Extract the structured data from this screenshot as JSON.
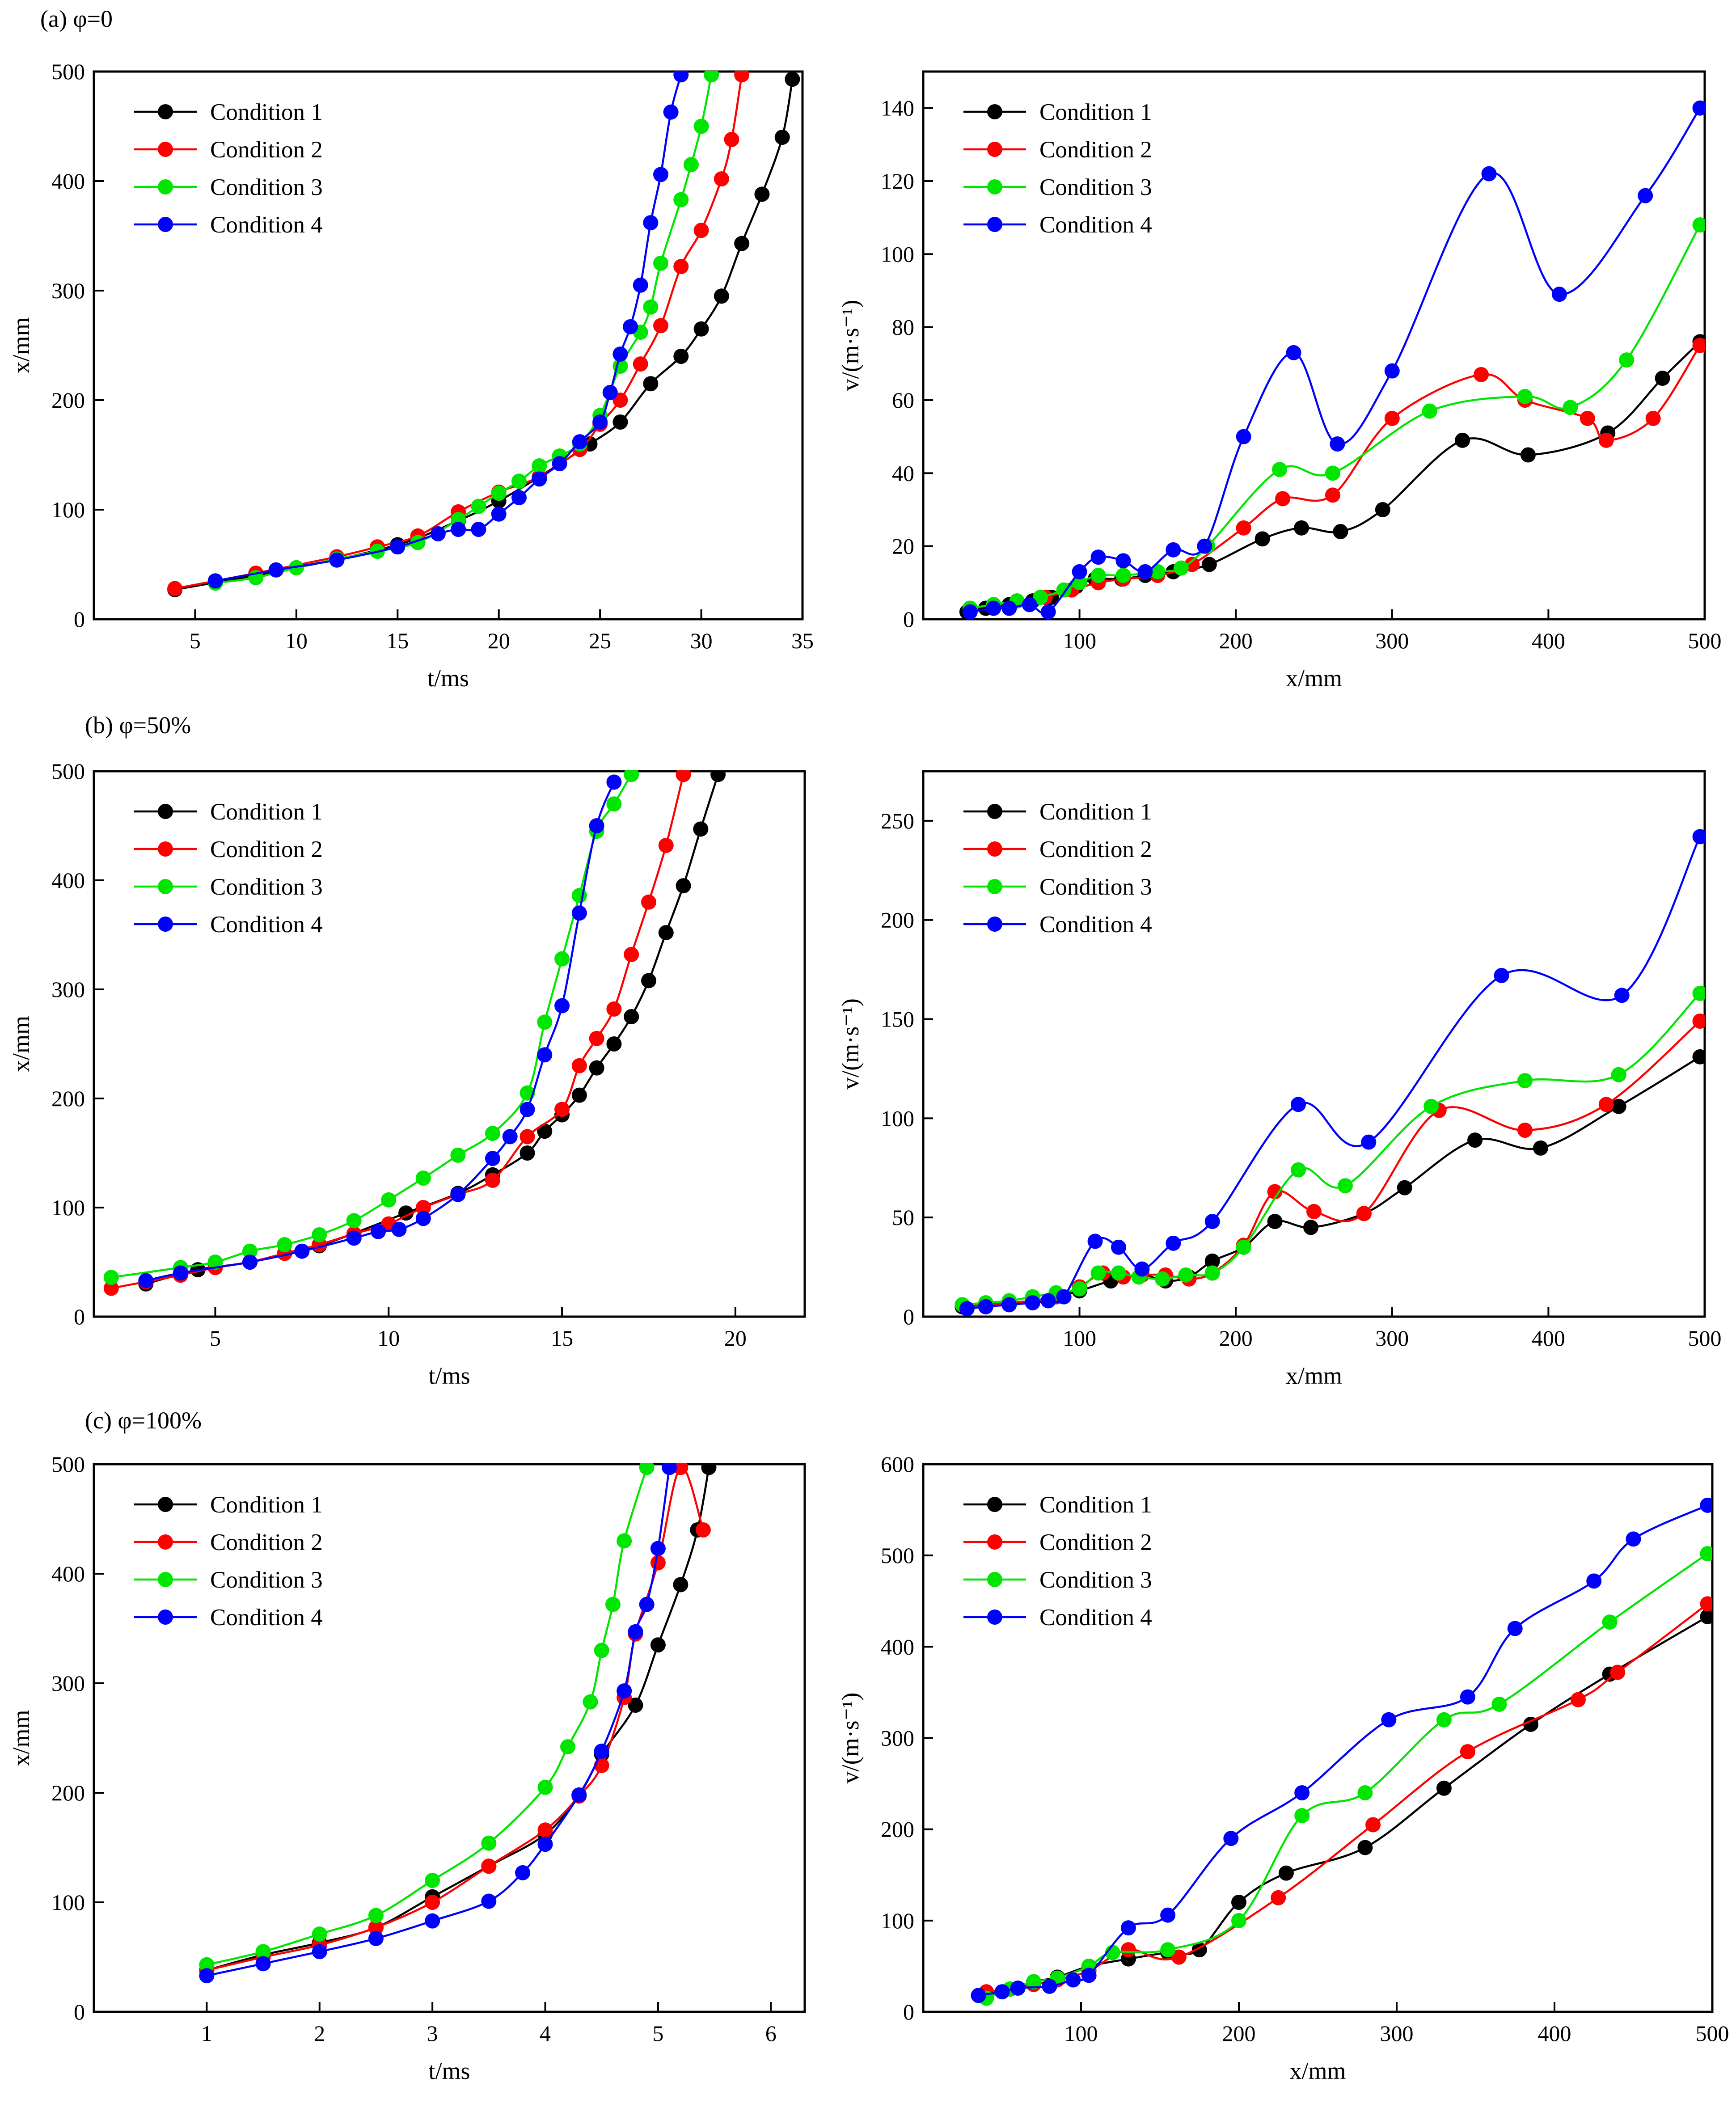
{
  "colors": {
    "Condition 1": "#000000",
    "Condition 2": "#ff0000",
    "Condition 3": "#00e600",
    "Condition 4": "#0000ff"
  },
  "chart_data": [
    {
      "id": "a-left",
      "type": "line",
      "panel_title": "(a) φ=0",
      "xlabel": "t/ms",
      "ylabel": "x/mm",
      "xlim": [
        0,
        35
      ],
      "ylim": [
        0,
        500
      ],
      "xticks": [
        5,
        10,
        15,
        20,
        25,
        30,
        35
      ],
      "yticks": [
        0,
        100,
        200,
        300,
        400,
        500
      ],
      "legend": "top-left",
      "series": [
        {
          "name": "Condition 1",
          "x": [
            4,
            10,
            15,
            18,
            20,
            22,
            24.5,
            26,
            27.5,
            29,
            30,
            31,
            32,
            33,
            34,
            34.5
          ],
          "y": [
            27,
            47,
            68,
            90,
            108,
            130,
            160,
            180,
            215,
            240,
            265,
            295,
            343,
            388,
            440,
            493
          ]
        },
        {
          "name": "Condition 2",
          "x": [
            4,
            8,
            12,
            14,
            16,
            18,
            20,
            22,
            24,
            25,
            26,
            27,
            28,
            29,
            30,
            31,
            31.5,
            32
          ],
          "y": [
            28,
            42,
            57,
            66,
            76,
            98,
            116,
            130,
            155,
            178,
            200,
            233,
            268,
            322,
            355,
            402,
            438,
            497
          ]
        },
        {
          "name": "Condition 3",
          "x": [
            6,
            8,
            10,
            12,
            14,
            16,
            18,
            19,
            20,
            21,
            22,
            23,
            24,
            25,
            26,
            27,
            27.5,
            28,
            29,
            29.5,
            30,
            30.5
          ],
          "y": [
            33,
            38,
            47,
            55,
            62,
            70,
            91,
            103,
            115,
            126,
            140,
            149,
            160,
            186,
            231,
            262,
            285,
            325,
            383,
            415,
            450,
            497
          ]
        },
        {
          "name": "Condition 4",
          "x": [
            6,
            9,
            12,
            15,
            17,
            18,
            19,
            20,
            21,
            22,
            23,
            24,
            25,
            25.5,
            26,
            26.5,
            27,
            27.5,
            28,
            28.5,
            29
          ],
          "y": [
            35,
            45,
            54,
            66,
            78,
            82,
            82,
            96,
            111,
            128,
            142,
            162,
            180,
            207,
            242,
            267,
            305,
            362,
            406,
            463,
            497
          ]
        }
      ]
    },
    {
      "id": "a-right",
      "type": "line",
      "xlabel": "x/mm",
      "ylabel": "v/(m·s⁻¹)",
      "xlim": [
        0,
        500
      ],
      "ylim": [
        0,
        150
      ],
      "xticks": [
        100,
        200,
        300,
        400,
        500
      ],
      "yticks": [
        0,
        20,
        40,
        60,
        80,
        100,
        120,
        140
      ],
      "legend": "top-left",
      "series": [
        {
          "name": "Condition 1",
          "x": [
            28,
            40,
            55,
            70,
            82,
            98,
            110,
            127,
            142,
            160,
            183,
            217,
            242,
            267,
            294,
            345,
            387,
            438,
            473,
            497
          ],
          "y": [
            2,
            3,
            4,
            5,
            6,
            9,
            11,
            11,
            12,
            13,
            15,
            22,
            25,
            24,
            30,
            49,
            45,
            51,
            66,
            76
          ]
        },
        {
          "name": "Condition 2",
          "x": [
            30,
            45,
            60,
            78,
            95,
            112,
            128,
            150,
            172,
            205,
            230,
            262,
            300,
            357,
            385,
            425,
            437,
            467,
            497
          ],
          "y": [
            3,
            4,
            5,
            6,
            8,
            10,
            11,
            12,
            15,
            25,
            33,
            34,
            55,
            67,
            60,
            55,
            49,
            55,
            75
          ]
        },
        {
          "name": "Condition 3",
          "x": [
            30,
            45,
            60,
            75,
            90,
            100,
            112,
            128,
            150,
            165,
            182,
            228,
            262,
            324,
            385,
            414,
            450,
            497
          ],
          "y": [
            3,
            4,
            5,
            6,
            8,
            10,
            12,
            12,
            13,
            14,
            20,
            41,
            40,
            57,
            61,
            58,
            71,
            108
          ]
        },
        {
          "name": "Condition 4",
          "x": [
            30,
            45,
            55,
            68,
            80,
            100,
            112,
            128,
            142,
            160,
            180,
            205,
            237,
            265,
            300,
            362,
            407,
            462,
            497
          ],
          "y": [
            2,
            3,
            3,
            4,
            2,
            13,
            17,
            16,
            13,
            19,
            20,
            50,
            73,
            48,
            68,
            122,
            89,
            116,
            140
          ]
        }
      ]
    },
    {
      "id": "b-left",
      "type": "line",
      "panel_title": "(b) φ=50%",
      "xlabel": "t/ms",
      "ylabel": "x/mm",
      "xlim": [
        1.5,
        22
      ],
      "ylim": [
        0,
        500
      ],
      "xticks": [
        5,
        10,
        15,
        20
      ],
      "yticks": [
        0,
        100,
        200,
        300,
        400,
        500
      ],
      "legend": "top-left",
      "series": [
        {
          "name": "Condition 1",
          "x": [
            3,
            4.5,
            6,
            8,
            10.5,
            12,
            13,
            14,
            14.5,
            15,
            15.5,
            16,
            16.5,
            17,
            17.5,
            18,
            18.5,
            19,
            19.5
          ],
          "y": [
            30,
            43,
            50,
            65,
            95,
            113,
            130,
            150,
            170,
            185,
            203,
            228,
            250,
            275,
            308,
            352,
            395,
            447,
            497
          ]
        },
        {
          "name": "Condition 2",
          "x": [
            2,
            3,
            4,
            5,
            6,
            7,
            8,
            9,
            10,
            11,
            12,
            13,
            14,
            15,
            15.5,
            16,
            16.5,
            17,
            17.5,
            18,
            18.5
          ],
          "y": [
            26,
            32,
            38,
            45,
            50,
            58,
            66,
            76,
            85,
            100,
            112,
            125,
            165,
            190,
            230,
            255,
            282,
            332,
            380,
            432,
            497
          ]
        },
        {
          "name": "Condition 3",
          "x": [
            2,
            4,
            5,
            6,
            7,
            8,
            9,
            10,
            11,
            12,
            13,
            14,
            14.5,
            15,
            15.5,
            16,
            16.5,
            17
          ],
          "y": [
            36,
            45,
            50,
            60,
            66,
            75,
            88,
            107,
            127,
            148,
            168,
            205,
            270,
            328,
            386,
            445,
            470,
            497
          ]
        },
        {
          "name": "Condition 4",
          "x": [
            3,
            4,
            6,
            7.5,
            9,
            9.7,
            10.3,
            11,
            12,
            13,
            13.5,
            14,
            14.5,
            15,
            15.5,
            16,
            16.5
          ],
          "y": [
            33,
            40,
            50,
            60,
            72,
            78,
            80,
            90,
            112,
            145,
            165,
            190,
            240,
            285,
            370,
            450,
            490
          ]
        }
      ]
    },
    {
      "id": "b-right",
      "type": "line",
      "xlabel": "x/mm",
      "ylabel": "v/(m·s⁻¹)",
      "xlim": [
        0,
        500
      ],
      "ylim": [
        0,
        275
      ],
      "xticks": [
        100,
        200,
        300,
        400,
        500
      ],
      "yticks": [
        0,
        50,
        100,
        150,
        200,
        250
      ],
      "legend": "top-left",
      "series": [
        {
          "name": "Condition 1",
          "x": [
            25,
            40,
            55,
            70,
            85,
            100,
            120,
            140,
            155,
            170,
            185,
            205,
            225,
            248,
            282,
            308,
            353,
            395,
            445,
            497
          ],
          "y": [
            5,
            6,
            7,
            8,
            10,
            13,
            18,
            21,
            18,
            20,
            28,
            35,
            48,
            45,
            52,
            65,
            89,
            85,
            106,
            131
          ]
        },
        {
          "name": "Condition 2",
          "x": [
            25,
            40,
            55,
            70,
            85,
            100,
            115,
            128,
            140,
            155,
            170,
            185,
            205,
            225,
            250,
            282,
            330,
            385,
            437,
            497
          ],
          "y": [
            6,
            6,
            7,
            8,
            10,
            15,
            22,
            20,
            21,
            21,
            19,
            22,
            36,
            63,
            53,
            52,
            104,
            94,
            107,
            149
          ]
        },
        {
          "name": "Condition 3",
          "x": [
            25,
            40,
            55,
            70,
            85,
            100,
            112,
            125,
            138,
            153,
            168,
            185,
            205,
            240,
            270,
            325,
            385,
            445,
            497
          ],
          "y": [
            6,
            7,
            8,
            10,
            12,
            14,
            22,
            22,
            20,
            19,
            21,
            22,
            35,
            74,
            66,
            106,
            119,
            122,
            163
          ]
        },
        {
          "name": "Condition 4",
          "x": [
            28,
            40,
            55,
            70,
            80,
            90,
            110,
            125,
            140,
            160,
            185,
            240,
            285,
            370,
            447,
            497
          ],
          "y": [
            4,
            5,
            6,
            7,
            8,
            10,
            38,
            35,
            24,
            37,
            48,
            107,
            88,
            172,
            162,
            242
          ]
        }
      ]
    },
    {
      "id": "c-left",
      "type": "line",
      "panel_title": "(c) φ=100%",
      "xlabel": "t/ms",
      "ylabel": "x/mm",
      "xlim": [
        0,
        6.3
      ],
      "ylim": [
        0,
        500
      ],
      "xticks": [
        1,
        2,
        3,
        4,
        5,
        6
      ],
      "yticks": [
        0,
        100,
        200,
        300,
        400,
        500
      ],
      "legend": "top-left",
      "series": [
        {
          "name": "Condition 1",
          "x": [
            1,
            1.5,
            2,
            2.5,
            3,
            3.5,
            4,
            4.3,
            4.5,
            4.8,
            5,
            5.2,
            5.35,
            5.45
          ],
          "y": [
            38,
            52,
            63,
            77,
            105,
            133,
            162,
            198,
            235,
            280,
            335,
            390,
            440,
            497
          ]
        },
        {
          "name": "Condition 2",
          "x": [
            1,
            1.5,
            2,
            2.5,
            3,
            3.5,
            4,
            4.3,
            4.5,
            4.7,
            4.8,
            5,
            5.2,
            5.4
          ],
          "y": [
            38,
            50,
            61,
            77,
            100,
            133,
            166,
            197,
            225,
            287,
            345,
            410,
            497,
            440
          ]
        },
        {
          "name": "Condition 3",
          "x": [
            1,
            1.5,
            2,
            2.5,
            3,
            3.5,
            4,
            4.2,
            4.4,
            4.5,
            4.6,
            4.7,
            4.9
          ],
          "y": [
            43,
            55,
            71,
            88,
            120,
            154,
            205,
            242,
            283,
            330,
            372,
            430,
            497
          ]
        },
        {
          "name": "Condition 4",
          "x": [
            1,
            1.5,
            2,
            2.5,
            3,
            3.5,
            3.8,
            4,
            4.3,
            4.5,
            4.7,
            4.8,
            4.9,
            5,
            5.1
          ],
          "y": [
            33,
            44,
            55,
            67,
            83,
            101,
            127,
            153,
            198,
            238,
            293,
            347,
            372,
            423,
            497
          ]
        }
      ]
    },
    {
      "id": "c-right",
      "type": "line",
      "xlabel": "x/mm",
      "ylabel": "v/(m·s⁻¹)",
      "xlim": [
        0,
        500
      ],
      "ylim": [
        0,
        600
      ],
      "xticks": [
        100,
        200,
        300,
        400,
        500
      ],
      "yticks": [
        0,
        100,
        200,
        300,
        400,
        500,
        600
      ],
      "legend": "top-left",
      "series": [
        {
          "name": "Condition 1",
          "x": [
            40,
            55,
            70,
            85,
            105,
            130,
            155,
            175,
            200,
            230,
            280,
            330,
            385,
            435,
            497
          ],
          "y": [
            20,
            25,
            33,
            38,
            50,
            58,
            65,
            68,
            120,
            152,
            180,
            245,
            315,
            370,
            433
          ]
        },
        {
          "name": "Condition 2",
          "x": [
            40,
            55,
            70,
            85,
            105,
            130,
            162,
            225,
            285,
            345,
            415,
            440,
            497
          ],
          "y": [
            22,
            25,
            30,
            35,
            45,
            68,
            60,
            125,
            205,
            285,
            342,
            372,
            447
          ]
        },
        {
          "name": "Condition 3",
          "x": [
            40,
            55,
            70,
            85,
            105,
            120,
            155,
            200,
            240,
            280,
            330,
            365,
            435,
            497
          ],
          "y": [
            15,
            25,
            33,
            37,
            50,
            65,
            68,
            100,
            215,
            240,
            320,
            337,
            427,
            502
          ]
        },
        {
          "name": "Condition 4",
          "x": [
            35,
            50,
            60,
            80,
            95,
            105,
            130,
            155,
            195,
            240,
            295,
            345,
            375,
            425,
            450,
            497
          ],
          "y": [
            18,
            22,
            26,
            28,
            35,
            40,
            92,
            106,
            190,
            240,
            320,
            345,
            420,
            472,
            518,
            555
          ]
        }
      ]
    }
  ]
}
